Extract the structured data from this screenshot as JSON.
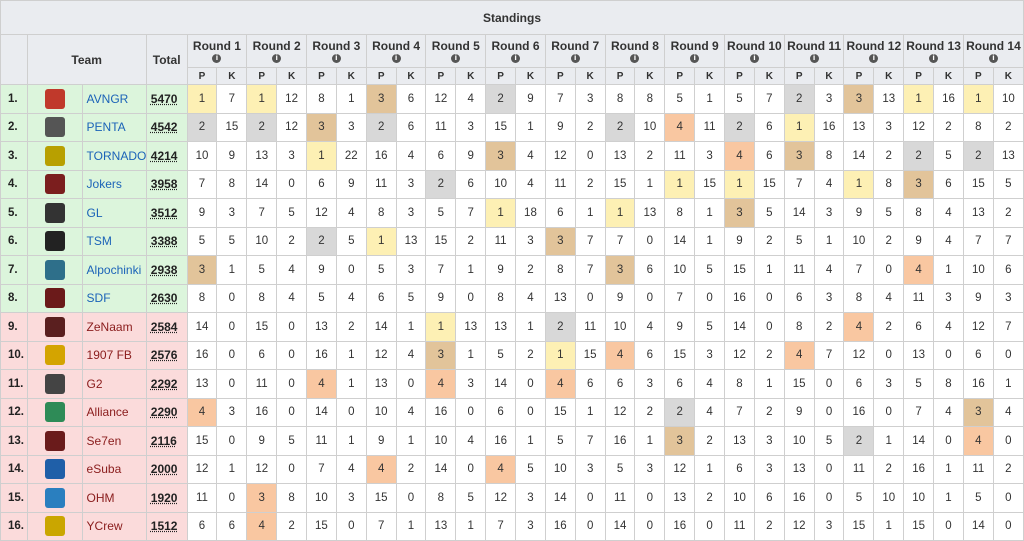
{
  "caption": "Standings",
  "headers": {
    "team": "Team",
    "total": "Total",
    "p": "P",
    "k": "K",
    "info_glyph": "i"
  },
  "rounds": [
    "Round 1",
    "Round 2",
    "Round 3",
    "Round 4",
    "Round 5",
    "Round 6",
    "Round 7",
    "Round 8",
    "Round 9",
    "Round 10",
    "Round 11",
    "Round 12",
    "Round 13",
    "Round 14"
  ],
  "highlight_colors": {
    "1st": "#fdf0b4",
    "2nd": "#d8d8d8",
    "3rd": "#f9c7a1",
    "4th": "#e2c49a"
  },
  "zone_colors": {
    "advance": "#dcf5dc",
    "eliminated": "#fbdbdb"
  },
  "rows": [
    {
      "rank": "1.",
      "team": "AVNGR",
      "total": "5470",
      "zone": "green",
      "logo": {
        "icon": "avngr-logo-icon",
        "color": "#c0392b"
      },
      "cells": [
        "1",
        "7",
        "1",
        "12",
        "8",
        "1",
        "3",
        "6",
        "12",
        "4",
        "2",
        "9",
        "7",
        "3",
        "8",
        "8",
        "5",
        "1",
        "5",
        "7",
        "2",
        "3",
        "3",
        "13",
        "1",
        "16",
        "1",
        "10"
      ],
      "hl": [
        "1",
        "",
        "1",
        "",
        "",
        "",
        "4",
        "",
        "",
        "",
        "2",
        "",
        "",
        "",
        "",
        "",
        "",
        "",
        "",
        "",
        "2",
        "",
        "4",
        "",
        "1",
        "",
        "1",
        ""
      ]
    },
    {
      "rank": "2.",
      "team": "PENTA",
      "total": "4542",
      "zone": "green",
      "logo": {
        "icon": "penta-logo-icon",
        "color": "#555"
      },
      "cells": [
        "2",
        "15",
        "2",
        "12",
        "3",
        "3",
        "2",
        "6",
        "11",
        "3",
        "15",
        "1",
        "9",
        "2",
        "2",
        "10",
        "4",
        "11",
        "2",
        "6",
        "1",
        "16",
        "13",
        "3",
        "12",
        "2",
        "8",
        "2"
      ],
      "hl": [
        "2",
        "",
        "2",
        "",
        "4",
        "",
        "2",
        "",
        "",
        "",
        "",
        "",
        "",
        "",
        "2",
        "",
        "3",
        "",
        "2",
        "",
        "1",
        "",
        "",
        "",
        "",
        "",
        "",
        ""
      ]
    },
    {
      "rank": "3.",
      "team": "TORNADO",
      "total": "4214",
      "zone": "green",
      "logo": {
        "icon": "tornado-logo-icon",
        "color": "#b8a000"
      },
      "cells": [
        "10",
        "9",
        "13",
        "3",
        "1",
        "22",
        "16",
        "4",
        "6",
        "9",
        "3",
        "4",
        "12",
        "0",
        "13",
        "2",
        "11",
        "3",
        "4",
        "6",
        "3",
        "8",
        "14",
        "2",
        "2",
        "5",
        "2",
        "13"
      ],
      "hl": [
        "",
        "",
        "",
        "",
        "1",
        "",
        "",
        "",
        "",
        "",
        "4",
        "",
        "",
        "",
        "",
        "",
        "",
        "",
        "3",
        "",
        "4",
        "",
        "",
        "",
        "2",
        "",
        "2",
        ""
      ]
    },
    {
      "rank": "4.",
      "team": "Jokers",
      "total": "3958",
      "zone": "green",
      "logo": {
        "icon": "jokers-logo-icon",
        "color": "#7b1e1e"
      },
      "cells": [
        "7",
        "8",
        "14",
        "0",
        "6",
        "9",
        "11",
        "3",
        "2",
        "6",
        "10",
        "4",
        "11",
        "2",
        "15",
        "1",
        "1",
        "15",
        "1",
        "15",
        "7",
        "4",
        "1",
        "8",
        "3",
        "6",
        "15",
        "5"
      ],
      "hl": [
        "",
        "",
        "",
        "",
        "",
        "",
        "",
        "",
        "2",
        "",
        "",
        "",
        "",
        "",
        "",
        "",
        "1",
        "",
        "1",
        "",
        "",
        "",
        "1",
        "",
        "4",
        "",
        "",
        ""
      ]
    },
    {
      "rank": "5.",
      "team": "GL",
      "total": "3512",
      "zone": "green",
      "logo": {
        "icon": "gl-logo-icon",
        "color": "#333"
      },
      "cells": [
        "9",
        "3",
        "7",
        "5",
        "12",
        "4",
        "8",
        "3",
        "5",
        "7",
        "1",
        "18",
        "6",
        "1",
        "1",
        "13",
        "8",
        "1",
        "3",
        "5",
        "14",
        "3",
        "9",
        "5",
        "8",
        "4",
        "13",
        "2"
      ],
      "hl": [
        "",
        "",
        "",
        "",
        "",
        "",
        "",
        "",
        "",
        "",
        "1",
        "",
        "",
        "",
        "1",
        "",
        "",
        "",
        "4",
        "",
        "",
        "",
        "",
        "",
        "",
        "",
        "",
        ""
      ]
    },
    {
      "rank": "6.",
      "team": "TSM",
      "total": "3388",
      "zone": "green",
      "logo": {
        "icon": "tsm-logo-icon",
        "color": "#222"
      },
      "cells": [
        "5",
        "5",
        "10",
        "2",
        "2",
        "5",
        "1",
        "13",
        "15",
        "2",
        "11",
        "3",
        "3",
        "7",
        "7",
        "0",
        "14",
        "1",
        "9",
        "2",
        "5",
        "1",
        "10",
        "2",
        "9",
        "4",
        "7",
        "7"
      ],
      "hl": [
        "",
        "",
        "",
        "",
        "2",
        "",
        "1",
        "",
        "",
        "",
        "",
        "",
        "4",
        "",
        "",
        "",
        "",
        "",
        "",
        "",
        "",
        "",
        "",
        "",
        "",
        "",
        "",
        ""
      ]
    },
    {
      "rank": "7.",
      "team": "Alpochinki",
      "total": "2938",
      "zone": "green",
      "logo": {
        "icon": "alpochinki-logo-icon",
        "color": "#2e6f8a"
      },
      "cells": [
        "3",
        "1",
        "5",
        "4",
        "9",
        "0",
        "5",
        "3",
        "7",
        "1",
        "9",
        "2",
        "8",
        "7",
        "3",
        "6",
        "10",
        "5",
        "15",
        "1",
        "11",
        "4",
        "7",
        "0",
        "4",
        "1",
        "10",
        "6"
      ],
      "hl": [
        "4",
        "",
        "",
        "",
        "",
        "",
        "",
        "",
        "",
        "",
        "",
        "",
        "",
        "",
        "4",
        "",
        "",
        "",
        "",
        "",
        "",
        "",
        "",
        "",
        "3",
        "",
        "",
        ""
      ]
    },
    {
      "rank": "8.",
      "team": "SDF",
      "total": "2630",
      "zone": "green",
      "logo": {
        "icon": "sdf-logo-icon",
        "color": "#6b1a1a"
      },
      "cells": [
        "8",
        "0",
        "8",
        "4",
        "5",
        "4",
        "6",
        "5",
        "9",
        "0",
        "8",
        "4",
        "13",
        "0",
        "9",
        "0",
        "7",
        "0",
        "16",
        "0",
        "6",
        "3",
        "8",
        "4",
        "11",
        "3",
        "9",
        "3"
      ],
      "hl": [
        "",
        "",
        "",
        "",
        "",
        "",
        "",
        "",
        "",
        "",
        "",
        "",
        "",
        "",
        "",
        "",
        "",
        "",
        "",
        "",
        "",
        "",
        "",
        "",
        "",
        "",
        "",
        ""
      ]
    },
    {
      "rank": "9.",
      "team": "ZeNaam",
      "total": "2584",
      "zone": "red",
      "logo": {
        "icon": "zenaam-logo-icon",
        "color": "#5a1f1f"
      },
      "cells": [
        "14",
        "0",
        "15",
        "0",
        "13",
        "2",
        "14",
        "1",
        "1",
        "13",
        "13",
        "1",
        "2",
        "11",
        "10",
        "4",
        "9",
        "5",
        "14",
        "0",
        "8",
        "2",
        "4",
        "2",
        "6",
        "4",
        "12",
        "7"
      ],
      "hl": [
        "",
        "",
        "",
        "",
        "",
        "",
        "",
        "",
        "1",
        "",
        "",
        "",
        "2",
        "",
        "",
        "",
        "",
        "",
        "",
        "",
        "",
        "",
        "3",
        "",
        "",
        "",
        "",
        ""
      ]
    },
    {
      "rank": "10.",
      "team": "1907 FB",
      "total": "2576",
      "zone": "red",
      "logo": {
        "icon": "1907fb-logo-icon",
        "color": "#d4a400"
      },
      "cells": [
        "16",
        "0",
        "6",
        "0",
        "16",
        "1",
        "12",
        "4",
        "3",
        "1",
        "5",
        "2",
        "1",
        "15",
        "4",
        "6",
        "15",
        "3",
        "12",
        "2",
        "4",
        "7",
        "12",
        "0",
        "13",
        "0",
        "6",
        "0"
      ],
      "hl": [
        "",
        "",
        "",
        "",
        "",
        "",
        "",
        "",
        "4",
        "",
        "",
        "",
        "1",
        "",
        "3",
        "",
        "",
        "",
        "",
        "",
        "3",
        "",
        "",
        "",
        "",
        "",
        "",
        ""
      ]
    },
    {
      "rank": "11.",
      "team": "G2",
      "total": "2292",
      "zone": "red",
      "logo": {
        "icon": "g2-logo-icon",
        "color": "#444"
      },
      "cells": [
        "13",
        "0",
        "11",
        "0",
        "4",
        "1",
        "13",
        "0",
        "4",
        "3",
        "14",
        "0",
        "4",
        "6",
        "6",
        "3",
        "6",
        "4",
        "8",
        "1",
        "15",
        "0",
        "6",
        "3",
        "5",
        "8",
        "16",
        "1"
      ],
      "hl": [
        "",
        "",
        "",
        "",
        "3",
        "",
        "",
        "",
        "3",
        "",
        "",
        "",
        "3",
        "",
        "",
        "",
        "",
        "",
        "",
        "",
        "",
        "",
        "",
        "",
        "",
        "",
        "",
        ""
      ]
    },
    {
      "rank": "12.",
      "team": "Alliance",
      "total": "2290",
      "zone": "red",
      "logo": {
        "icon": "alliance-logo-icon",
        "color": "#2e8b57"
      },
      "cells": [
        "4",
        "3",
        "16",
        "0",
        "14",
        "0",
        "10",
        "4",
        "16",
        "0",
        "6",
        "0",
        "15",
        "1",
        "12",
        "2",
        "2",
        "4",
        "7",
        "2",
        "9",
        "0",
        "16",
        "0",
        "7",
        "4",
        "3",
        "4"
      ],
      "hl": [
        "3",
        "",
        "",
        "",
        "",
        "",
        "",
        "",
        "",
        "",
        "",
        "",
        "",
        "",
        "",
        "",
        "2",
        "",
        "",
        "",
        "",
        "",
        "",
        "",
        "",
        "",
        "4",
        ""
      ]
    },
    {
      "rank": "13.",
      "team": "Se7en",
      "total": "2116",
      "zone": "red",
      "logo": {
        "icon": "se7en-logo-icon",
        "color": "#6a1b1b"
      },
      "cells": [
        "15",
        "0",
        "9",
        "5",
        "11",
        "1",
        "9",
        "1",
        "10",
        "4",
        "16",
        "1",
        "5",
        "7",
        "16",
        "1",
        "3",
        "2",
        "13",
        "3",
        "10",
        "5",
        "2",
        "1",
        "14",
        "0",
        "4",
        "0"
      ],
      "hl": [
        "",
        "",
        "",
        "",
        "",
        "",
        "",
        "",
        "",
        "",
        "",
        "",
        "",
        "",
        "",
        "",
        "4",
        "",
        "",
        "",
        "",
        "",
        "2",
        "",
        "",
        "",
        "3",
        ""
      ]
    },
    {
      "rank": "14.",
      "team": "eSuba",
      "total": "2000",
      "zone": "red",
      "logo": {
        "icon": "esuba-logo-icon",
        "color": "#1f5fa8"
      },
      "cells": [
        "12",
        "1",
        "12",
        "0",
        "7",
        "4",
        "4",
        "2",
        "14",
        "0",
        "4",
        "5",
        "10",
        "3",
        "5",
        "3",
        "12",
        "1",
        "6",
        "3",
        "13",
        "0",
        "11",
        "2",
        "16",
        "1",
        "11",
        "2"
      ],
      "hl": [
        "",
        "",
        "",
        "",
        "",
        "",
        "3",
        "",
        "",
        "",
        "3",
        "",
        "",
        "",
        "",
        "",
        "",
        "",
        "",
        "",
        "",
        "",
        "",
        "",
        "",
        "",
        "",
        ""
      ]
    },
    {
      "rank": "15.",
      "team": "OHM",
      "total": "1920",
      "zone": "red",
      "logo": {
        "icon": "ohm-logo-icon",
        "color": "#2a7fbf"
      },
      "cells": [
        "11",
        "0",
        "3",
        "8",
        "10",
        "3",
        "15",
        "0",
        "8",
        "5",
        "12",
        "3",
        "14",
        "0",
        "11",
        "0",
        "13",
        "2",
        "10",
        "6",
        "16",
        "0",
        "5",
        "10",
        "10",
        "1",
        "5",
        "0"
      ],
      "hl": [
        "",
        "",
        "3",
        "",
        "",
        "",
        "",
        "",
        "",
        "",
        "",
        "",
        "",
        "",
        "",
        "",
        "",
        "",
        "",
        "",
        "",
        "",
        "",
        "",
        "",
        "",
        "",
        ""
      ]
    },
    {
      "rank": "16.",
      "team": "YCrew",
      "total": "1512",
      "zone": "red",
      "logo": {
        "icon": "ycrew-logo-icon",
        "color": "#caa600"
      },
      "cells": [
        "6",
        "6",
        "4",
        "2",
        "15",
        "0",
        "7",
        "1",
        "13",
        "1",
        "7",
        "3",
        "16",
        "0",
        "14",
        "0",
        "16",
        "0",
        "11",
        "2",
        "12",
        "3",
        "15",
        "1",
        "15",
        "0",
        "14",
        "0"
      ],
      "hl": [
        "",
        "",
        "3",
        "",
        "",
        "",
        "",
        "",
        "",
        "",
        "",
        "",
        "",
        "",
        "",
        "",
        "",
        "",
        "",
        "",
        "",
        "",
        "",
        "",
        "",
        "",
        "",
        ""
      ]
    }
  ]
}
